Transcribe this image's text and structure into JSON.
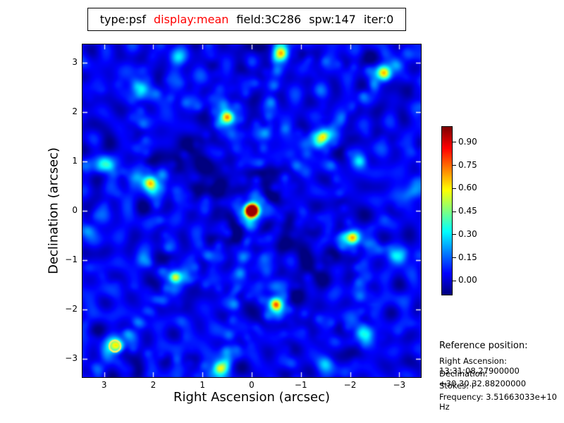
{
  "title": {
    "t1": "type:psf",
    "t2": "display:mean",
    "t3": "field:3C286",
    "t4": "spw:147",
    "t5": "iter:0",
    "accent_color": "#ff0000"
  },
  "plot": {
    "xlabel": "Right Ascension (arcsec)",
    "ylabel": "Declination (arcsec)",
    "x_tick_labels": [
      "3",
      "2",
      "1",
      "0",
      "−1",
      "−2",
      "−3"
    ],
    "y_tick_labels": [
      "3",
      "2",
      "1",
      "0",
      "−1",
      "−2",
      "−3"
    ]
  },
  "colorbar": {
    "tick_labels": [
      "0.90",
      "0.75",
      "0.60",
      "0.45",
      "0.30",
      "0.15",
      "0.00"
    ]
  },
  "reference": {
    "heading": "Reference position:",
    "lines": [
      "Right Ascension: 13:31:08.27900000",
      "Declination: +30.30.32.88200000",
      "Stokes: I",
      "Frequency: 3.51663033e+10 Hz"
    ]
  },
  "chart_data": {
    "type": "heatmap",
    "title": "type:psf display:mean field:3C286 spw:147 iter:0",
    "xlabel": "Right Ascension (arcsec)",
    "ylabel": "Declination (arcsec)",
    "x_range": [
      3.44,
      -3.44
    ],
    "y_range": [
      -3.37,
      3.37
    ],
    "x_ticks": [
      3,
      2,
      1,
      0,
      -1,
      -2,
      -3
    ],
    "y_ticks": [
      3,
      2,
      1,
      0,
      -1,
      -2,
      -3
    ],
    "colormap": "jet",
    "value_range": [
      -0.09,
      1.0
    ],
    "colorbar_ticks": [
      0.9,
      0.75,
      0.6,
      0.45,
      0.3,
      0.15,
      0.0
    ],
    "grid": false,
    "peak": {
      "ra": 0.0,
      "dec": 0.0,
      "value": 1.0,
      "sigma_arcsec": 0.085
    },
    "marker_circle": {
      "ra": 2.78,
      "dec": -2.74,
      "radius_px": 8,
      "color": "#eef06a"
    },
    "sidelobe_nodes": [
      [
        2.05,
        0.55,
        0.36
      ],
      [
        -2.05,
        -0.55,
        0.3
      ],
      [
        0.5,
        1.9,
        0.32
      ],
      [
        -0.5,
        -1.9,
        0.36
      ],
      [
        1.55,
        -1.35,
        0.25
      ],
      [
        -1.45,
        1.5,
        0.27
      ],
      [
        -0.6,
        3.2,
        0.35
      ],
      [
        0.65,
        -3.2,
        0.32
      ],
      [
        -2.7,
        2.8,
        0.36
      ],
      [
        2.78,
        -2.74,
        0.34
      ],
      [
        3.0,
        0.95,
        0.26
      ],
      [
        -3.0,
        -0.95,
        0.22
      ],
      [
        -2.3,
        -2.5,
        0.2
      ],
      [
        2.3,
        2.5,
        0.18
      ],
      [
        1.5,
        3.1,
        0.18
      ],
      [
        -1.5,
        -3.1,
        0.18
      ],
      [
        -2.2,
        1.0,
        0.16
      ],
      [
        2.2,
        -1.0,
        0.16
      ],
      [
        3.3,
        -0.4,
        0.14
      ],
      [
        -3.3,
        0.4,
        0.14
      ]
    ],
    "spoke_angles_deg": [
      15,
      75.3,
      100.6,
      134,
      -44.6,
      -80
    ],
    "ridge_segments": [
      [
        2.05,
        0.55,
        0.5,
        1.9
      ],
      [
        0.5,
        1.9,
        -1.45,
        1.5
      ],
      [
        -1.45,
        1.5,
        -2.05,
        -0.55
      ],
      [
        -2.05,
        -0.55,
        -0.5,
        -1.9
      ],
      [
        -0.5,
        -1.9,
        1.55,
        -1.35
      ],
      [
        1.55,
        -1.35,
        2.05,
        0.55
      ],
      [
        0.5,
        1.9,
        -0.6,
        3.2
      ],
      [
        -0.6,
        3.2,
        -2.7,
        2.8
      ],
      [
        -1.45,
        1.5,
        -2.7,
        2.8
      ],
      [
        -0.5,
        -1.9,
        0.65,
        -3.2
      ],
      [
        0.65,
        -3.2,
        2.78,
        -2.74
      ],
      [
        1.55,
        -1.35,
        2.78,
        -2.74
      ],
      [
        2.05,
        0.55,
        3.0,
        0.95
      ],
      [
        -2.05,
        -0.55,
        -3.0,
        -0.95
      ],
      [
        -2.05,
        -0.55,
        -2.3,
        -2.5
      ],
      [
        -0.5,
        -1.9,
        -2.3,
        -2.5
      ],
      [
        0.5,
        1.9,
        2.3,
        2.5
      ],
      [
        2.05,
        0.55,
        2.3,
        2.5
      ],
      [
        -1.45,
        1.5,
        -2.2,
        1.0
      ],
      [
        1.55,
        -1.35,
        2.2,
        -1.0
      ]
    ],
    "arc_centers": [
      [
        2.05,
        0.55
      ],
      [
        -2.05,
        -0.55
      ],
      [
        0.5,
        1.9
      ],
      [
        -0.5,
        -1.9
      ],
      [
        1.55,
        -1.35
      ],
      [
        -1.45,
        1.5
      ]
    ],
    "dark_patches": [
      [
        -0.36,
        0.66
      ],
      [
        0.41,
        -0.49
      ],
      [
        0.8,
        0.56
      ],
      [
        -0.8,
        -0.6
      ],
      [
        1.3,
        1.2
      ],
      [
        -1.3,
        -1.2
      ]
    ]
  }
}
